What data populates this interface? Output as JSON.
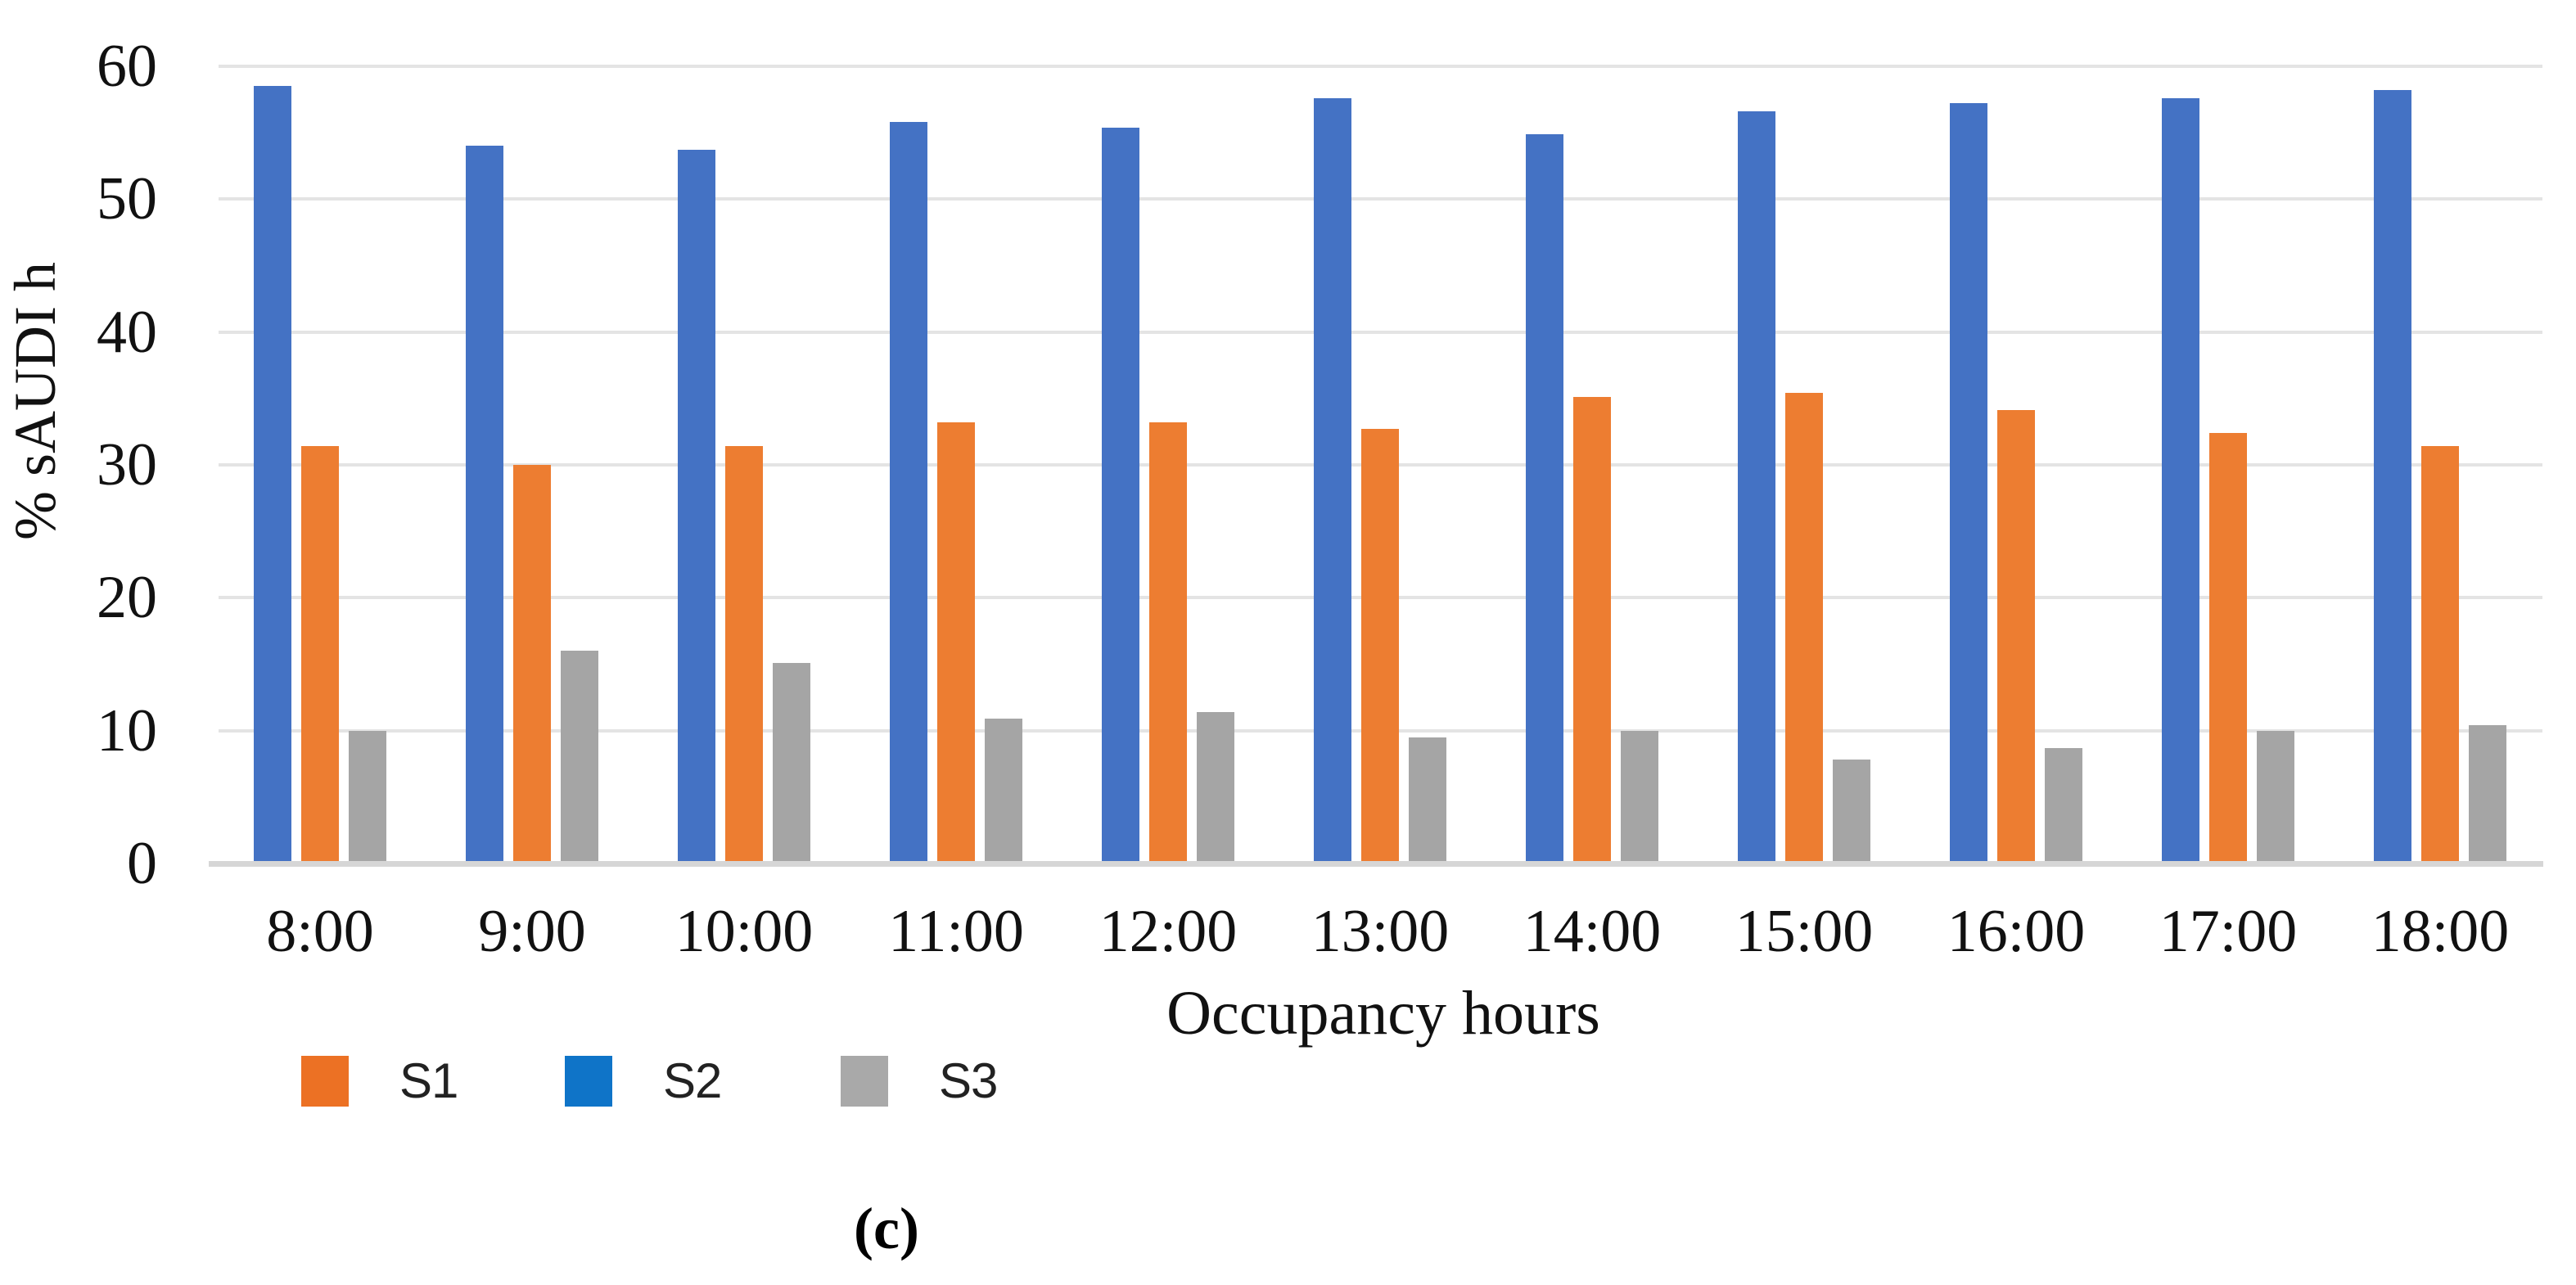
{
  "chart_data": {
    "type": "bar",
    "title": "",
    "xlabel": "Occupancy hours",
    "ylabel": "% sAUDI h",
    "ylim": [
      0,
      60
    ],
    "ytick_step": 10,
    "y_ticks": [
      "0",
      "10",
      "20",
      "30",
      "40",
      "50",
      "60"
    ],
    "grid": true,
    "legend_position": "bottom-left",
    "categories": [
      "8:00",
      "9:00",
      "10:00",
      "11:00",
      "12:00",
      "13:00",
      "14:00",
      "15:00",
      "16:00",
      "17:00",
      "18:00"
    ],
    "series": [
      {
        "name": "S2",
        "color": "#4472C4",
        "values": [
          58.5,
          54.0,
          53.7,
          55.8,
          55.4,
          57.6,
          54.9,
          56.6,
          57.2,
          57.6,
          58.2
        ]
      },
      {
        "name": "S1",
        "color": "#ED7D31",
        "values": [
          31.4,
          30.0,
          31.4,
          33.2,
          33.2,
          32.7,
          35.1,
          35.4,
          34.1,
          32.4,
          31.4
        ]
      },
      {
        "name": "S3",
        "color": "#A5A5A5",
        "values": [
          10.0,
          16.0,
          15.1,
          10.9,
          11.4,
          9.5,
          10.0,
          7.8,
          8.7,
          10.0,
          10.4
        ]
      }
    ]
  },
  "legend": {
    "items": [
      {
        "label": "S1",
        "color": "#EC7124"
      },
      {
        "label": "S2",
        "color": "#0F74C8"
      },
      {
        "label": "S3",
        "color": "#A9A9A9"
      }
    ]
  },
  "caption": "(c)"
}
